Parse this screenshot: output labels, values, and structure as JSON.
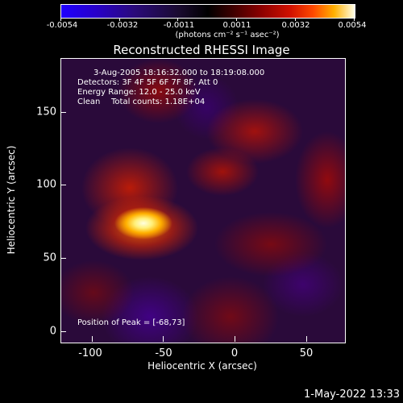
{
  "colorbar": {
    "ticks": [
      "-0.0054",
      "-0.0032",
      "-0.0011",
      "0.0011",
      "0.0032",
      "0.0054"
    ],
    "units": "(photons cm⁻² s⁻¹ asec⁻²)",
    "colors": {
      "low": "#1f00ff",
      "mid": "#000000",
      "high": "#ffffe8"
    }
  },
  "title": "Reconstructed RHESSI Image",
  "info": {
    "time_range": "3-Aug-2005 18:16:32.000 to 18:19:08.000",
    "detectors": "Detectors: 3F 4F 5F 6F 7F 8F, Att 0",
    "energy": "Energy Range: 12.0 - 25.0 keV",
    "algorithm": "Clean",
    "counts": "Total counts: 1.18E+04",
    "peak": "Position of Peak = [-68,73]"
  },
  "axes": {
    "xlabel": "Heliocentric X (arcsec)",
    "ylabel": "Heliocentric Y (arcsec)",
    "xticks": [
      "-100",
      "-50",
      "0",
      "50"
    ],
    "yticks": [
      "0",
      "50",
      "100",
      "150"
    ]
  },
  "footer": {
    "date": "1-May-2022 13:33"
  }
}
